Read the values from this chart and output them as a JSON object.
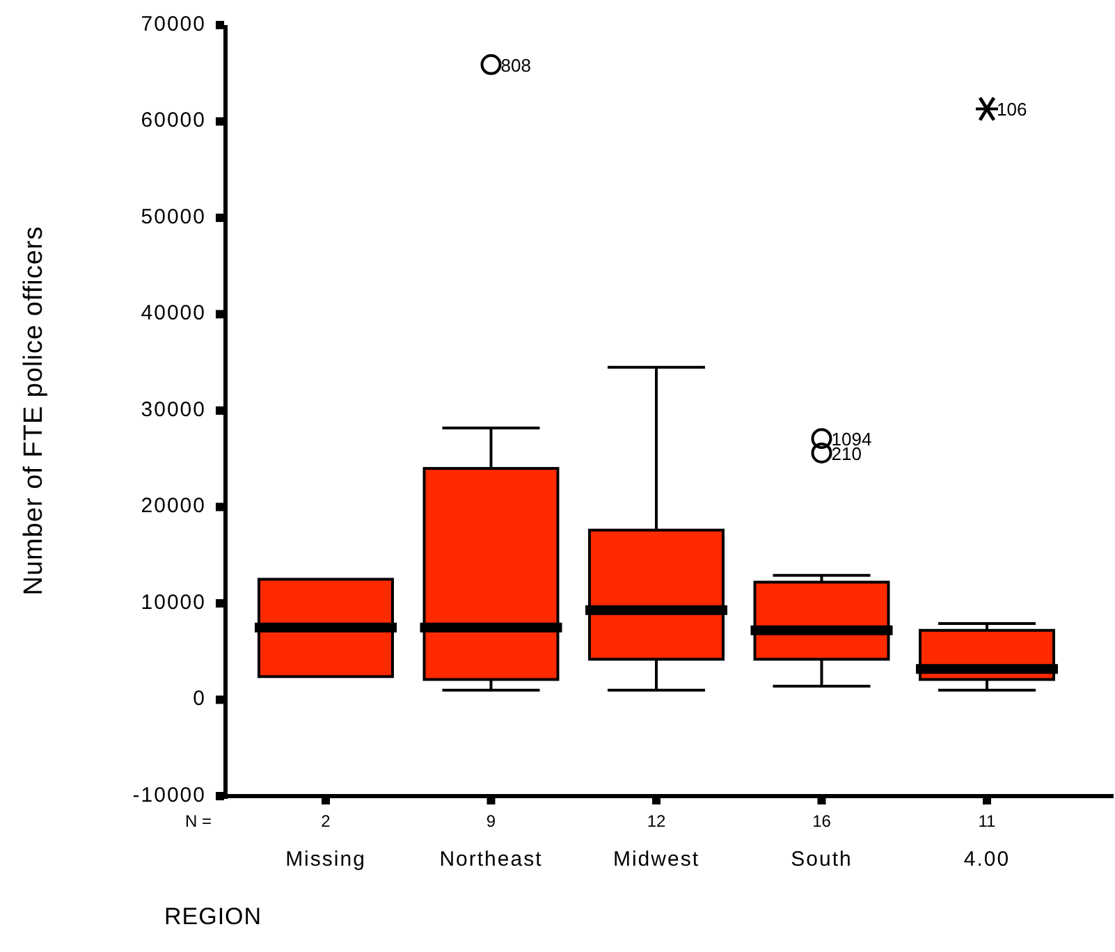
{
  "chart_data": {
    "type": "box",
    "ylabel": "Number of FTE police officers",
    "xlabel": "REGION",
    "categories": [
      "Missing",
      "Northeast",
      "Midwest",
      "South",
      "4.00"
    ],
    "ylim": [
      -10000,
      70000
    ],
    "yticks": [
      -10000,
      0,
      10000,
      20000,
      30000,
      40000,
      50000,
      60000,
      70000
    ],
    "color": "#ff2a00",
    "boxes": [
      {
        "low": 2400,
        "q1": 2400,
        "median": 7500,
        "q3": 12500,
        "high": 12500
      },
      {
        "low": 1000,
        "q1": 2100,
        "median": 7500,
        "q3": 24000,
        "high": 28200,
        "outliers": [
          65900
        ]
      },
      {
        "low": 1000,
        "q1": 4200,
        "median": 9300,
        "q3": 17600,
        "high": 34500
      },
      {
        "low": 1400,
        "q1": 4200,
        "median": 7200,
        "q3": 12200,
        "high": 12900,
        "outliers": [
          27100,
          25600
        ]
      },
      {
        "low": 1000,
        "q1": 2100,
        "median": 3200,
        "q3": 7200,
        "high": 7900,
        "outliers": [
          61300
        ]
      }
    ],
    "annotations": [
      "808",
      "1094",
      "210",
      "106",
      "N =",
      "2",
      "9",
      "12",
      "16",
      "11"
    ]
  }
}
